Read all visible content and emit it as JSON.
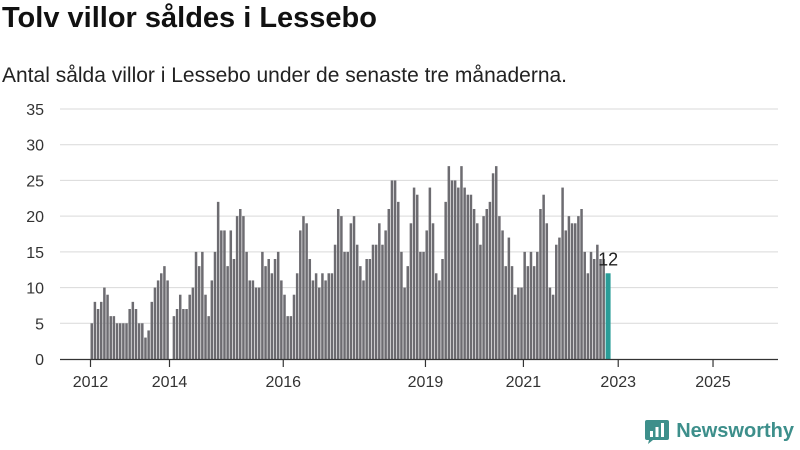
{
  "header": {
    "title": "Tolv villor såldes i Lessebo",
    "subtitle": "Antal sålda villor i Lessebo under de senaste tre månaderna."
  },
  "brand": {
    "name": "Newsworthy",
    "icon": "newsworthy-logo-icon",
    "color": "#3d8f8b"
  },
  "chart_data": {
    "type": "bar",
    "title": "",
    "xlabel": "",
    "ylabel": "",
    "ylim": [
      0,
      35
    ],
    "y_ticks": [
      "0",
      "5",
      "10",
      "15",
      "20",
      "25",
      "30",
      "35"
    ],
    "x_ticks": [
      "2012",
      "2014",
      "2016",
      "2019",
      "2021",
      "2023",
      "2025"
    ],
    "grid": true,
    "bar_color": "#6d6c71",
    "highlight_color": "#2a9d98",
    "highlight_label": "12",
    "values": [
      5,
      8,
      7,
      8,
      10,
      9,
      6,
      6,
      5,
      5,
      5,
      5,
      7,
      8,
      7,
      5,
      5,
      3,
      4,
      8,
      10,
      11,
      12,
      13,
      11,
      0,
      6,
      7,
      9,
      7,
      7,
      9,
      10,
      15,
      13,
      15,
      9,
      6,
      11,
      15,
      22,
      18,
      18,
      13,
      18,
      14,
      20,
      21,
      20,
      15,
      11,
      11,
      10,
      10,
      15,
      13,
      14,
      12,
      14,
      15,
      11,
      9,
      6,
      6,
      9,
      12,
      18,
      20,
      19,
      14,
      11,
      12,
      10,
      12,
      11,
      12,
      12,
      16,
      21,
      20,
      15,
      15,
      19,
      20,
      16,
      13,
      11,
      14,
      14,
      16,
      16,
      19,
      16,
      18,
      21,
      25,
      25,
      22,
      15,
      10,
      13,
      19,
      24,
      23,
      15,
      15,
      18,
      24,
      19,
      12,
      11,
      14,
      22,
      27,
      25,
      25,
      24,
      27,
      24,
      23,
      23,
      21,
      19,
      16,
      20,
      21,
      22,
      26,
      27,
      20,
      18,
      13,
      17,
      13,
      9,
      10,
      10,
      15,
      13,
      15,
      13,
      15,
      21,
      23,
      19,
      10,
      9,
      16,
      17,
      24,
      18,
      20,
      19,
      19,
      20,
      21,
      15,
      12,
      15,
      14,
      16,
      14,
      14,
      12
    ]
  }
}
